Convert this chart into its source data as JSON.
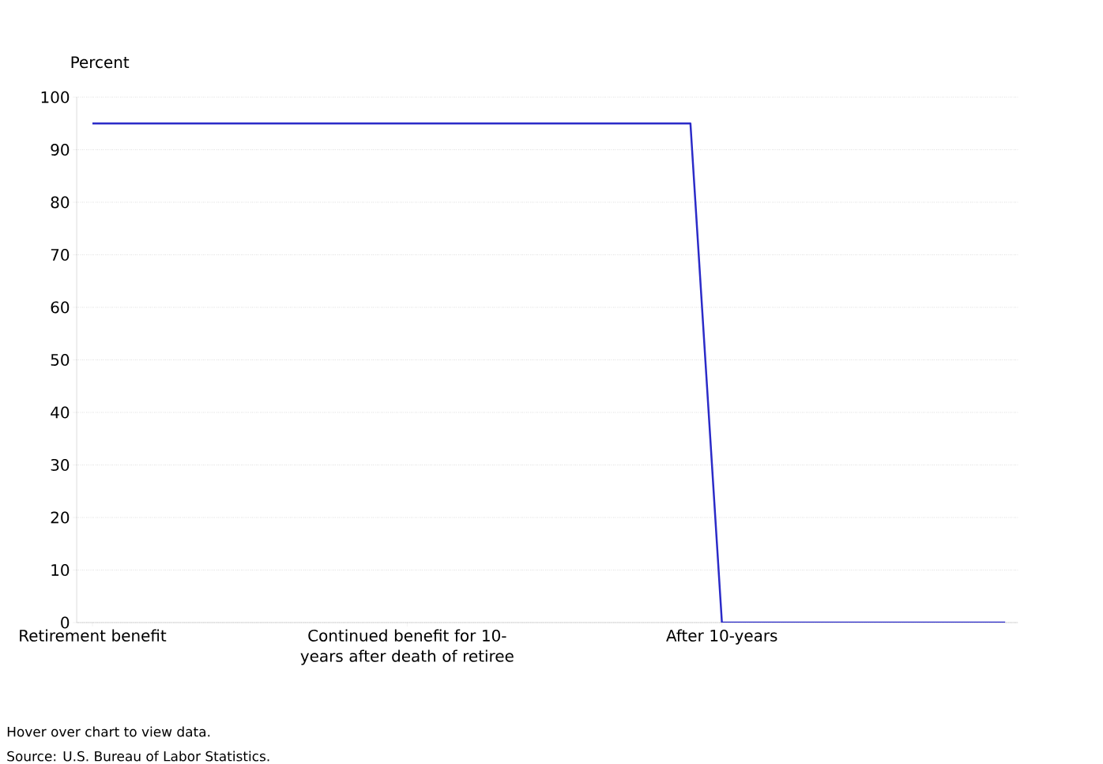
{
  "chart_data": {
    "type": "line",
    "ylabel": "Percent",
    "categories": [
      "Retirement benefit",
      null,
      null,
      null,
      null,
      null,
      null,
      null,
      null,
      null,
      "Continued benefit for 10-years after death of retiree",
      null,
      null,
      null,
      null,
      null,
      null,
      null,
      null,
      null,
      "After 10-years",
      null,
      null,
      null,
      null,
      null,
      null,
      null,
      null,
      null
    ],
    "series": [
      {
        "color": "#2b2bc8",
        "values": [
          95,
          95,
          95,
          95,
          95,
          95,
          95,
          95,
          95,
          95,
          95,
          95,
          95,
          95,
          95,
          95,
          95,
          95,
          95,
          95,
          0,
          0,
          0,
          0,
          0,
          0,
          0,
          0,
          0,
          0
        ]
      }
    ],
    "ylim": [
      0,
      100
    ],
    "yticks": [
      0,
      10,
      20,
      30,
      40,
      50,
      60,
      70,
      80,
      90,
      100
    ],
    "grid": "y",
    "marker": "none",
    "line_style": "solid",
    "annotations": [
      "Hover over chart to view data.",
      "Source: U.S. Bureau of Labor Statistics."
    ]
  }
}
